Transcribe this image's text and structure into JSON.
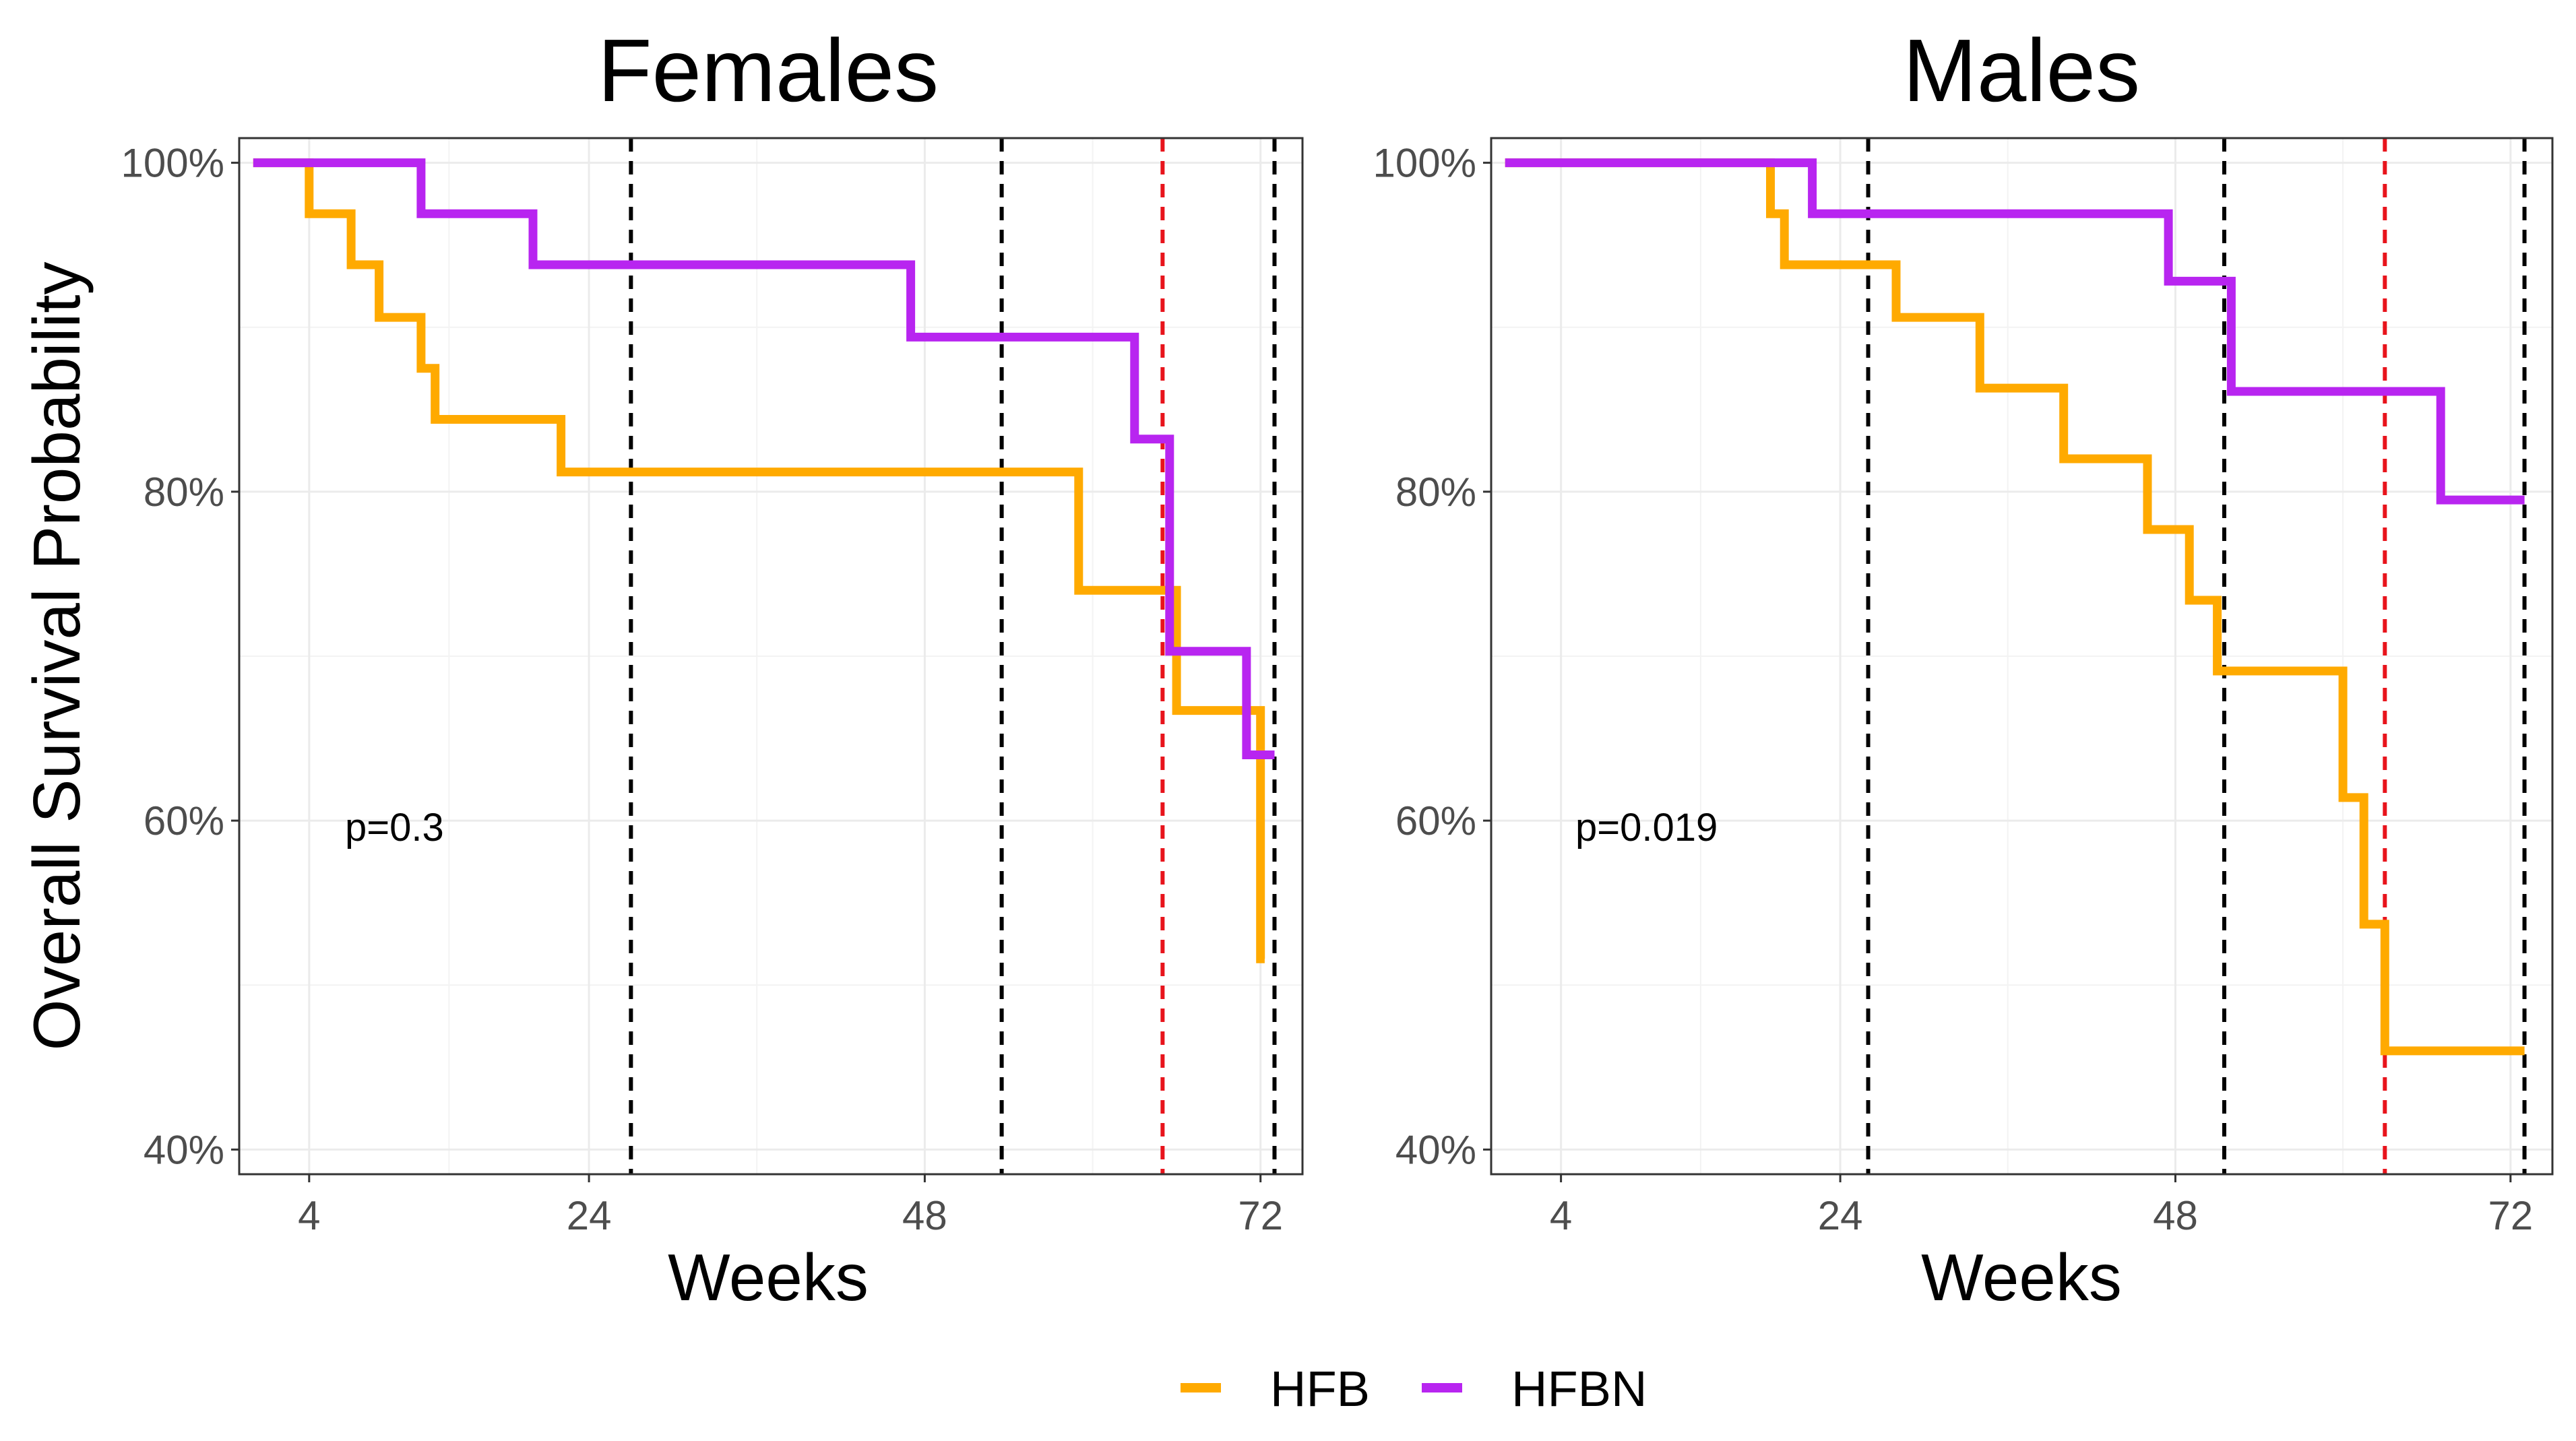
{
  "colors": {
    "HFB": "#FFAA00",
    "HFBN": "#B825F0",
    "reference_black": "#000000",
    "reference_red": "#E8141C"
  },
  "legend": {
    "items": [
      {
        "name": "HFB",
        "color": "#FFAA00"
      },
      {
        "name": "HFBN",
        "color": "#B825F0"
      }
    ]
  },
  "chart_data": [
    {
      "type": "line",
      "subtype": "kaplan-meier-step",
      "title": "Females",
      "xlabel": "Weeks",
      "ylabel": "Overall Survival Probability",
      "xticks": [
        4,
        24,
        48,
        72
      ],
      "yticks": [
        0.4,
        0.6,
        0.8,
        1.0
      ],
      "ytick_labels": [
        "40%",
        "60%",
        "80%",
        "100%"
      ],
      "xlim": [
        -1,
        75
      ],
      "ylim": [
        0.385,
        1.015
      ],
      "annotation": {
        "text": "p=0.3",
        "x": 5.8,
        "y": 0.598
      },
      "reference_lines": [
        {
          "x": 27,
          "color": "black"
        },
        {
          "x": 53.5,
          "color": "black"
        },
        {
          "x": 65,
          "color": "red"
        },
        {
          "x": 73,
          "color": "black"
        }
      ],
      "series": [
        {
          "name": "HFB",
          "points": [
            [
              0,
              1.0
            ],
            [
              4,
              1.0
            ],
            [
              4,
              0.969
            ],
            [
              7,
              0.969
            ],
            [
              7,
              0.938
            ],
            [
              9,
              0.938
            ],
            [
              9,
              0.906
            ],
            [
              12,
              0.906
            ],
            [
              12,
              0.875
            ],
            [
              13,
              0.875
            ],
            [
              13,
              0.844
            ],
            [
              22,
              0.844
            ],
            [
              22,
              0.812
            ],
            [
              59,
              0.812
            ],
            [
              59,
              0.74
            ],
            [
              66,
              0.74
            ],
            [
              66,
              0.667
            ],
            [
              72,
              0.667
            ],
            [
              72,
              0.516
            ],
            [
              72.3,
              0.516
            ]
          ]
        },
        {
          "name": "HFBN",
          "points": [
            [
              0,
              1.0
            ],
            [
              12,
              1.0
            ],
            [
              12,
              0.969
            ],
            [
              20,
              0.969
            ],
            [
              20,
              0.938
            ],
            [
              47,
              0.938
            ],
            [
              47,
              0.894
            ],
            [
              63,
              0.894
            ],
            [
              63,
              0.832
            ],
            [
              65.5,
              0.832
            ],
            [
              65.5,
              0.703
            ],
            [
              71,
              0.703
            ],
            [
              71,
              0.64
            ],
            [
              73,
              0.64
            ]
          ]
        }
      ]
    },
    {
      "type": "line",
      "subtype": "kaplan-meier-step",
      "title": "Males",
      "xlabel": "Weeks",
      "ylabel": "",
      "xticks": [
        4,
        24,
        48,
        72
      ],
      "yticks": [
        0.4,
        0.6,
        0.8,
        1.0
      ],
      "ytick_labels": [
        "40%",
        "60%",
        "80%",
        "100%"
      ],
      "xlim": [
        -1,
        75
      ],
      "ylim": [
        0.385,
        1.015
      ],
      "annotation": {
        "text": "p=0.019",
        "x": 4,
        "y": 0.598
      },
      "reference_lines": [
        {
          "x": 26,
          "color": "black"
        },
        {
          "x": 51.5,
          "color": "black"
        },
        {
          "x": 63,
          "color": "red"
        },
        {
          "x": 73,
          "color": "black"
        }
      ],
      "series": [
        {
          "name": "HFB",
          "points": [
            [
              0,
              1.0
            ],
            [
              19,
              1.0
            ],
            [
              19,
              0.969
            ],
            [
              20,
              0.969
            ],
            [
              20,
              0.938
            ],
            [
              28,
              0.938
            ],
            [
              28,
              0.906
            ],
            [
              34,
              0.906
            ],
            [
              34,
              0.863
            ],
            [
              40,
              0.863
            ],
            [
              40,
              0.82
            ],
            [
              46,
              0.82
            ],
            [
              46,
              0.777
            ],
            [
              49,
              0.777
            ],
            [
              49,
              0.734
            ],
            [
              51,
              0.734
            ],
            [
              51,
              0.691
            ],
            [
              60,
              0.691
            ],
            [
              60,
              0.614
            ],
            [
              61.5,
              0.614
            ],
            [
              61.5,
              0.537
            ],
            [
              63,
              0.537
            ],
            [
              63,
              0.46
            ],
            [
              73,
              0.46
            ]
          ]
        },
        {
          "name": "HFBN",
          "points": [
            [
              0,
              1.0
            ],
            [
              22,
              1.0
            ],
            [
              22,
              0.969
            ],
            [
              47.5,
              0.969
            ],
            [
              47.5,
              0.928
            ],
            [
              52,
              0.928
            ],
            [
              52,
              0.861
            ],
            [
              67,
              0.861
            ],
            [
              67,
              0.795
            ],
            [
              73,
              0.795
            ]
          ]
        }
      ]
    }
  ]
}
